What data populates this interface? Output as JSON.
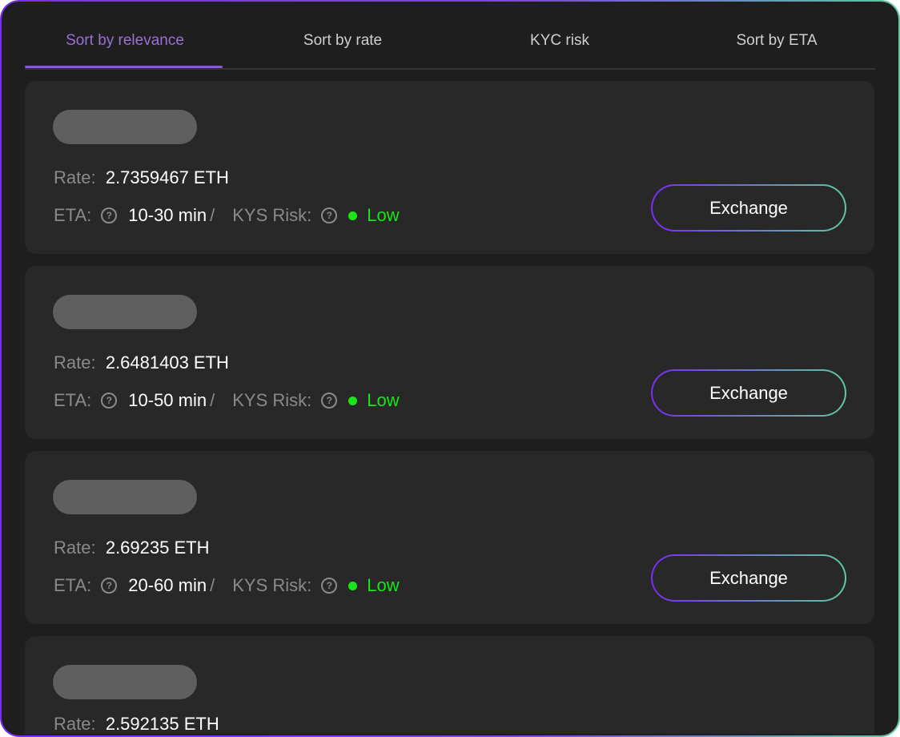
{
  "tabs": [
    {
      "label": "Sort by relevance",
      "active": true
    },
    {
      "label": "Sort by rate",
      "active": false
    },
    {
      "label": "KYC risk",
      "active": false
    },
    {
      "label": "Sort by ETA",
      "active": false
    }
  ],
  "labels": {
    "rate": "Rate:",
    "eta": "ETA:",
    "risk": "KYS Risk:",
    "help_icon": "?",
    "exchange": "Exchange",
    "slash": "/"
  },
  "offers": [
    {
      "rate": "2.7359467 ETH",
      "eta": "10-30 min",
      "risk": "Low"
    },
    {
      "rate": "2.6481403 ETH",
      "eta": "10-50 min",
      "risk": "Low"
    },
    {
      "rate": "2.69235 ETH",
      "eta": "20-60 min",
      "risk": "Low"
    },
    {
      "rate": "2.592135 ETH"
    }
  ],
  "colors": {
    "accent": "#8a5bd0",
    "risk_low": "#19e619",
    "gradient_start": "#7a2cf5",
    "gradient_end": "#5ec9a0"
  }
}
